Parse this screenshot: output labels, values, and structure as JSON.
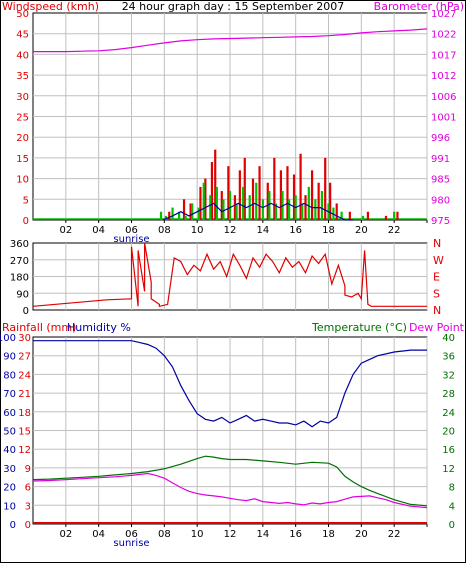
{
  "title": "24 hour graph day : 15 September 2007",
  "colors": {
    "wind": "#00c000",
    "gust": "#e00000",
    "avg": "#0000a0",
    "baro": "#e000e0",
    "dir": "#e00000",
    "rain": "#e00000",
    "hum": "#0000a0",
    "temp": "#007000",
    "dew": "#e000e0",
    "grid": "#c0c0c0",
    "axis": "#000000"
  },
  "x_ticks": [
    "02",
    "04",
    "06",
    "08",
    "10",
    "12",
    "14",
    "16",
    "18",
    "20",
    "22",
    ""
  ],
  "sunrise_label": "sunrise",
  "chart_data": [
    {
      "type": "line",
      "panel": "wind-barometer",
      "ylabel": "Windspeed (kmh)",
      "ylabel_right": "Barometer (hPa)",
      "ylim": [
        0,
        50
      ],
      "yticks": [
        0,
        5,
        10,
        15,
        20,
        25,
        30,
        35,
        40,
        45,
        50
      ],
      "ylim_right": [
        975,
        1027
      ],
      "yticks_right": [
        975,
        980,
        985,
        991,
        996,
        1001,
        1006,
        1012,
        1017,
        1022,
        1027
      ],
      "grid": true,
      "series": [
        {
          "id": "gust",
          "style": "bars",
          "x": [
            8.3,
            9.2,
            9.6,
            10.2,
            10.5,
            10.9,
            11.1,
            11.5,
            11.9,
            12.3,
            12.6,
            12.9,
            13.4,
            13.8,
            14.3,
            14.7,
            15.1,
            15.5,
            15.9,
            16.3,
            16.6,
            17.0,
            17.4,
            17.8,
            18.1,
            18.5,
            19.3,
            20.4,
            21.5,
            22.2
          ],
          "values": [
            2,
            5,
            4,
            8,
            10,
            14,
            17,
            7,
            13,
            6,
            12,
            15,
            10,
            13,
            9,
            15,
            12,
            13,
            11,
            16,
            6,
            12,
            9,
            15,
            9,
            4,
            2,
            2,
            1,
            2
          ]
        },
        {
          "id": "wind",
          "style": "bars",
          "x": [
            7.8,
            8.1,
            8.5,
            8.9,
            9.3,
            9.7,
            10.1,
            10.4,
            10.8,
            11.2,
            11.6,
            12.0,
            12.4,
            12.8,
            13.2,
            13.6,
            14.0,
            14.4,
            14.8,
            15.2,
            15.6,
            16.0,
            16.4,
            16.8,
            17.2,
            17.6,
            18.0,
            18.3,
            18.8,
            20.1,
            22.0
          ],
          "values": [
            2,
            1,
            3,
            2,
            1,
            4,
            3,
            9,
            6,
            8,
            5,
            7,
            4,
            8,
            6,
            9,
            5,
            7,
            4,
            7,
            5,
            6,
            4,
            8,
            5,
            7,
            4,
            3,
            2,
            1,
            2
          ]
        },
        {
          "id": "avg",
          "style": "line",
          "x": [
            7.9,
            8.5,
            9.0,
            9.5,
            10.0,
            10.5,
            11.0,
            11.5,
            12.0,
            12.5,
            13.0,
            13.5,
            14.0,
            14.5,
            15.0,
            15.5,
            16.0,
            16.5,
            17.0,
            17.5,
            18.0,
            18.5,
            19.0,
            19.5
          ],
          "values": [
            0,
            1,
            2,
            1,
            2,
            3,
            4,
            2,
            3,
            4,
            3,
            4,
            3,
            4,
            3,
            4,
            3,
            4,
            3,
            3,
            2,
            1,
            0,
            0
          ]
        },
        {
          "id": "baro",
          "style": "line",
          "axis": "right",
          "x": [
            0,
            1,
            2,
            3,
            4,
            5,
            6,
            7,
            8,
            9,
            10,
            11,
            12,
            13,
            14,
            15,
            16,
            17,
            18,
            19,
            20,
            21,
            22,
            23,
            24
          ],
          "values": [
            1017.3,
            1017.3,
            1017.3,
            1017.4,
            1017.5,
            1017.8,
            1018.3,
            1018.9,
            1019.5,
            1020.0,
            1020.3,
            1020.5,
            1020.6,
            1020.7,
            1020.8,
            1020.9,
            1021.0,
            1021.1,
            1021.3,
            1021.6,
            1022.0,
            1022.3,
            1022.5,
            1022.7,
            1023.0
          ]
        }
      ]
    },
    {
      "type": "line",
      "panel": "wind-direction",
      "ylim": [
        0,
        360
      ],
      "yticks": [
        0,
        90,
        180,
        270,
        360
      ],
      "yticks_right": [
        "N",
        "S",
        "E",
        "W",
        "N"
      ],
      "grid": true,
      "series": [
        {
          "id": "dir",
          "x": [
            0,
            4.5,
            6.0,
            6.0,
            6.4,
            6.4,
            6.8,
            6.8,
            7.2,
            7.2,
            7.7,
            7.7,
            8.2,
            8.6,
            9.0,
            9.4,
            9.8,
            10.2,
            10.6,
            11.0,
            11.4,
            11.8,
            12.2,
            12.6,
            13.0,
            13.4,
            13.8,
            14.2,
            14.6,
            15.0,
            15.4,
            15.8,
            16.2,
            16.6,
            17.0,
            17.4,
            17.8,
            18.2,
            18.6,
            19.0,
            19.0,
            19.4,
            19.8,
            20.0,
            20.2,
            20.4,
            20.6,
            24.0
          ],
          "values": [
            20,
            55,
            60,
            340,
            20,
            320,
            100,
            360,
            150,
            60,
            30,
            20,
            30,
            280,
            260,
            190,
            240,
            210,
            300,
            220,
            260,
            180,
            300,
            240,
            170,
            280,
            230,
            300,
            260,
            200,
            280,
            230,
            260,
            200,
            290,
            250,
            300,
            140,
            240,
            130,
            80,
            70,
            90,
            60,
            320,
            30,
            20,
            20
          ]
        }
      ]
    },
    {
      "type": "line",
      "panel": "humidity-temperature",
      "ylabel": "Rainfall (mm)",
      "ylabel_humidity": "Humidity %",
      "ylabel_right": "Temperature (°C)",
      "ylabel_right2": "Dew Point",
      "ylim_humidity": [
        0,
        100
      ],
      "yticks_humidity": [
        0,
        10,
        20,
        30,
        40,
        50,
        60,
        70,
        80,
        90,
        100
      ],
      "ylim_rain": [
        0,
        30
      ],
      "yticks_rain": [
        0,
        3,
        6,
        9,
        12,
        15,
        18,
        21,
        24,
        27,
        30
      ],
      "ylim_temp": [
        0,
        40
      ],
      "yticks_temp": [
        0,
        4,
        8,
        12,
        16,
        20,
        24,
        28,
        32,
        36,
        40
      ],
      "grid": true,
      "series": [
        {
          "id": "hum",
          "axis": "humidity",
          "x": [
            0,
            1,
            2,
            3,
            4,
            5,
            6,
            6.5,
            7,
            7.5,
            8,
            8.5,
            9,
            9.5,
            10,
            10.5,
            11,
            11.5,
            12,
            12.5,
            13,
            13.5,
            14,
            14.5,
            15,
            15.5,
            16,
            16.5,
            17,
            17.5,
            18,
            18.5,
            19,
            19.5,
            20,
            20.5,
            21,
            22,
            23,
            24
          ],
          "values": [
            98,
            98,
            98,
            98,
            98,
            98,
            98,
            97,
            96,
            94,
            90,
            84,
            74,
            66,
            59,
            56,
            55,
            57,
            54,
            56,
            58,
            55,
            56,
            55,
            54,
            54,
            53,
            55,
            52,
            55,
            54,
            57,
            70,
            80,
            86,
            88,
            90,
            92,
            93,
            93
          ]
        },
        {
          "id": "temp",
          "axis": "temp",
          "x": [
            0,
            1,
            2,
            3,
            4,
            5,
            6,
            7,
            8,
            9,
            10,
            10.5,
            11,
            11.5,
            12,
            13,
            14,
            15,
            16,
            17,
            18,
            18.5,
            19,
            19.5,
            20,
            20.5,
            21,
            22,
            23,
            24
          ],
          "values": [
            9.5,
            9.6,
            9.8,
            10.0,
            10.2,
            10.5,
            10.8,
            11.2,
            11.8,
            12.8,
            14.0,
            14.5,
            14.3,
            14.0,
            13.8,
            13.8,
            13.5,
            13.2,
            12.8,
            13.2,
            13.0,
            12.2,
            10.2,
            9.0,
            8.0,
            7.2,
            6.5,
            5.2,
            4.2,
            3.9
          ]
        },
        {
          "id": "dew",
          "axis": "temp",
          "x": [
            0,
            1,
            2,
            3,
            4,
            5,
            6,
            7,
            7.5,
            8,
            8.5,
            9,
            9.5,
            10,
            10.5,
            11,
            11.5,
            12,
            12.5,
            13,
            13.5,
            14,
            14.5,
            15,
            15.5,
            16,
            16.5,
            17,
            17.5,
            18,
            18.5,
            19,
            19.5,
            20,
            20.5,
            21,
            21.5,
            22,
            23,
            24
          ],
          "values": [
            9.2,
            9.3,
            9.5,
            9.7,
            9.9,
            10.1,
            10.4,
            10.8,
            10.4,
            9.8,
            8.8,
            7.8,
            7.0,
            6.5,
            6.2,
            6.0,
            5.8,
            5.5,
            5.2,
            5.0,
            5.4,
            4.8,
            4.6,
            4.4,
            4.6,
            4.3,
            4.1,
            4.5,
            4.3,
            4.6,
            4.8,
            5.3,
            5.8,
            5.9,
            6.0,
            5.6,
            5.2,
            4.6,
            3.8,
            3.5
          ]
        },
        {
          "id": "rain",
          "axis": "rain",
          "x": [
            0,
            24
          ],
          "values": [
            0,
            0
          ]
        }
      ]
    }
  ]
}
